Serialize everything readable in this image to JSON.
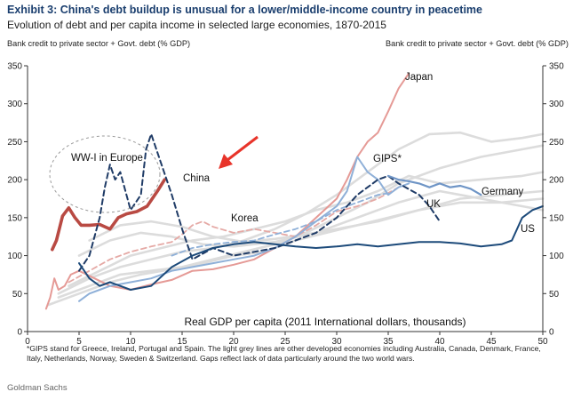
{
  "header": {
    "title": "Exhibit 3: China's debt buildup is unusual for a lower/middle-income country in peacetime",
    "subtitle": "Evolution of debt and per capita income in selected large economies, 1870-2015"
  },
  "footnote": "*GIPS  stand for Greece, Ireland, Portugal and Spain. The light grey lines are other developed economies including Australia, Canada, Denmark, France, Italy,  Netherlands, Norway, Sweden & Switzerland. Gaps reflect lack of data particularly around the two world wars.",
  "source": "Goldman Sachs",
  "colors": {
    "china": "#b94a43",
    "japan": "#e59a96",
    "korea": "#e5a9a5",
    "gips": "#8fb0d8",
    "uk": "#1f3b66",
    "germany": "#6f95c6",
    "us": "#1c4a7a",
    "others": "#dcdcdc",
    "arrow": "#e8342a",
    "ww1_circle": "#9a9a9a"
  },
  "chart_data": {
    "type": "line",
    "title": "Exhibit 3: China's debt buildup is unusual for a lower/middle-income country in peacetime",
    "xlabel": "Real GDP per capita (2011 International dollars, thousands)",
    "ylabel_left": "Bank credit to private sector + Govt. debt (% GDP)",
    "ylabel_right": "Bank credit to private sector + Govt. debt (% GDP)",
    "xlim": [
      0,
      50
    ],
    "ylim": [
      0,
      350
    ],
    "xticks": [
      "0",
      "5",
      "10",
      "15",
      "20",
      "25",
      "30",
      "35",
      "40",
      "45",
      "50"
    ],
    "yticks": [
      "0",
      "50",
      "100",
      "150",
      "200",
      "250",
      "300",
      "350"
    ],
    "grid": false,
    "annotations": [
      {
        "text": "WW-I in Europe"
      },
      {
        "text": "China"
      },
      {
        "text": "Japan"
      },
      {
        "text": "GIPS*"
      },
      {
        "text": "Germany"
      },
      {
        "text": "UK"
      },
      {
        "text": "Korea"
      },
      {
        "text": "US"
      }
    ],
    "series": [
      {
        "name": "China",
        "color": "#b94a43",
        "width": 3.6,
        "dash": "",
        "x": [
          2.4,
          2.8,
          3.4,
          4.0,
          4.6,
          5.2,
          6.0,
          7.0,
          8.0,
          8.8,
          9.6,
          10.6,
          11.6,
          12.6,
          13.3
        ],
        "y": [
          108,
          120,
          152,
          163,
          150,
          140,
          140,
          141,
          135,
          150,
          155,
          158,
          165,
          185,
          200
        ]
      },
      {
        "name": "Japan",
        "color": "#e59a96",
        "width": 2,
        "dash": "",
        "x": [
          1.8,
          2.2,
          2.6,
          3.0,
          3.6,
          4.2,
          5.0,
          6.5,
          8.0,
          10,
          12,
          14,
          16,
          18,
          20,
          22,
          24,
          26,
          28,
          30,
          31,
          32,
          33,
          34,
          35,
          36,
          37
        ],
        "y": [
          30,
          45,
          70,
          55,
          60,
          75,
          80,
          70,
          60,
          55,
          62,
          68,
          80,
          82,
          88,
          95,
          110,
          125,
          150,
          175,
          200,
          230,
          250,
          262,
          290,
          320,
          340
        ]
      },
      {
        "name": "Korea",
        "color": "#e5a9a5",
        "width": 1.8,
        "dash": "6,4",
        "x": [
          4,
          6,
          8,
          10,
          12,
          14,
          15,
          16,
          17,
          18,
          20,
          22,
          24,
          26,
          28,
          30,
          32,
          34,
          36
        ],
        "y": [
          65,
          80,
          95,
          105,
          112,
          118,
          128,
          140,
          145,
          138,
          130,
          135,
          130,
          125,
          140,
          158,
          165,
          175,
          190
        ]
      },
      {
        "name": "GIPS",
        "color": "#8fb0d8",
        "width": 2,
        "dash": "",
        "x": [
          5,
          6,
          7,
          8,
          10,
          12,
          14,
          16,
          18,
          20,
          22,
          24,
          26,
          28,
          30,
          31,
          32,
          33,
          34,
          35,
          36,
          37
        ],
        "y": [
          40,
          50,
          55,
          60,
          65,
          70,
          80,
          85,
          90,
          95,
          100,
          110,
          125,
          145,
          165,
          185,
          230,
          210,
          200,
          180,
          190,
          195
        ]
      },
      {
        "name": "GIPS-dashed",
        "color": "#8fb0d8",
        "width": 1.8,
        "dash": "6,4",
        "x": [
          14,
          16,
          18,
          20,
          22,
          24,
          26,
          28,
          30,
          32,
          34,
          35
        ],
        "y": [
          100,
          110,
          115,
          118,
          120,
          128,
          135,
          145,
          160,
          170,
          180,
          182
        ]
      },
      {
        "name": "UK",
        "color": "#1f3b66",
        "width": 2,
        "dash": "6,4",
        "x": [
          5,
          6,
          7,
          7.5,
          8,
          8.5,
          9,
          10,
          11,
          11.5,
          12,
          13,
          14,
          15,
          16,
          18,
          20,
          22,
          24,
          26,
          28,
          30,
          32,
          34,
          35,
          36,
          38,
          39,
          40
        ],
        "y": [
          80,
          100,
          150,
          190,
          220,
          200,
          210,
          160,
          180,
          240,
          260,
          220,
          180,
          135,
          95,
          110,
          100,
          105,
          110,
          120,
          130,
          150,
          180,
          200,
          205,
          195,
          180,
          165,
          145
        ]
      },
      {
        "name": "Germany",
        "color": "#6f95c6",
        "width": 2.2,
        "dash": "",
        "x": [
          35,
          36,
          37,
          38,
          39,
          40,
          41,
          42,
          43,
          44
        ],
        "y": [
          205,
          200,
          198,
          195,
          190,
          195,
          190,
          192,
          188,
          180
        ]
      },
      {
        "name": "US",
        "color": "#1c4a7a",
        "width": 2,
        "dash": "",
        "x": [
          5,
          6,
          7,
          8,
          9,
          10,
          12,
          14,
          16,
          18,
          20,
          22,
          24,
          26,
          28,
          30,
          32,
          34,
          36,
          38,
          40,
          42,
          44,
          46,
          47,
          48,
          49,
          50
        ],
        "y": [
          90,
          70,
          60,
          65,
          60,
          55,
          60,
          85,
          100,
          110,
          115,
          118,
          115,
          112,
          110,
          112,
          115,
          112,
          115,
          118,
          118,
          116,
          112,
          115,
          120,
          150,
          160,
          165
        ]
      },
      {
        "name": "Other",
        "color": "#dcdcdc",
        "width": 2.6,
        "dash": "",
        "x": [
          3,
          6,
          9,
          12,
          15,
          18,
          21,
          24,
          27,
          30,
          33,
          36,
          39,
          42,
          45,
          48,
          50
        ],
        "y": [
          50,
          70,
          85,
          95,
          105,
          110,
          120,
          135,
          155,
          180,
          210,
          240,
          260,
          262,
          250,
          255,
          260
        ]
      },
      {
        "name": "Other",
        "color": "#dcdcdc",
        "width": 2.6,
        "dash": "",
        "x": [
          3,
          6,
          9,
          12,
          15,
          18,
          21,
          24,
          27,
          30,
          33,
          36,
          40,
          44,
          48,
          50
        ],
        "y": [
          45,
          60,
          75,
          80,
          85,
          95,
          105,
          115,
          130,
          150,
          170,
          195,
          215,
          230,
          240,
          245
        ]
      },
      {
        "name": "Other",
        "color": "#dcdcdc",
        "width": 2.6,
        "dash": "",
        "x": [
          4,
          7,
          10,
          13,
          16,
          19,
          22,
          25,
          28,
          31,
          34,
          37,
          40,
          44,
          48,
          50
        ],
        "y": [
          60,
          80,
          100,
          110,
          120,
          125,
          135,
          145,
          160,
          170,
          185,
          205,
          195,
          200,
          205,
          210
        ]
      },
      {
        "name": "Other",
        "color": "#dcdcdc",
        "width": 2.6,
        "dash": "",
        "x": [
          2,
          5,
          8,
          11,
          14,
          17,
          20,
          23,
          26,
          29,
          32,
          35,
          38,
          42,
          46,
          50
        ],
        "y": [
          35,
          50,
          65,
          75,
          82,
          90,
          100,
          105,
          120,
          130,
          140,
          150,
          160,
          175,
          180,
          185
        ]
      },
      {
        "name": "Other",
        "color": "#dcdcdc",
        "width": 2.6,
        "dash": "",
        "x": [
          5,
          8,
          11,
          14,
          17,
          20,
          24,
          28,
          32,
          36,
          40,
          44,
          48,
          50
        ],
        "y": [
          100,
          120,
          130,
          125,
          115,
          112,
          118,
          130,
          150,
          170,
          185,
          175,
          165,
          160
        ]
      },
      {
        "name": "Other",
        "color": "#dcdcdc",
        "width": 2.6,
        "dash": "",
        "x": [
          6,
          9,
          12,
          15,
          18,
          21,
          24,
          27,
          30,
          34,
          38,
          42,
          46,
          50
        ],
        "y": [
          120,
          140,
          145,
          138,
          125,
          118,
          122,
          128,
          135,
          145,
          160,
          170,
          170,
          175
        ]
      }
    ]
  }
}
